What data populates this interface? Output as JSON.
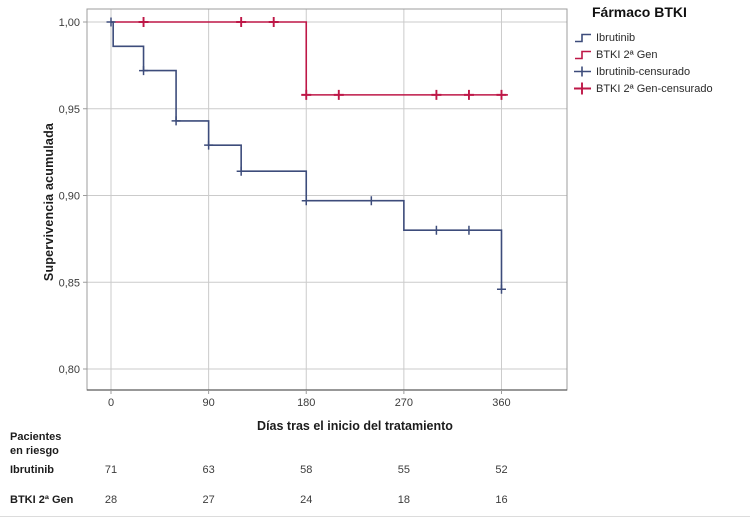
{
  "colors": {
    "blue": "#3d4c7b",
    "red": "#be1747",
    "grid": "#cbcbcb",
    "frame": "#9c9c9c",
    "axis_line": "#5a5a5a",
    "text_dark": "#1c1c1c",
    "text_tick": "#3c3c3c"
  },
  "legend": {
    "title": "Fármaco BTKI",
    "items": [
      {
        "label": "Ibrutinib",
        "symbol": "step-line",
        "color": "blue"
      },
      {
        "label": "BTKI 2ª Gen",
        "symbol": "step-line",
        "color": "red"
      },
      {
        "label": "Ibrutinib-censurado",
        "symbol": "plus",
        "color": "blue"
      },
      {
        "label": "BTKI 2ª Gen-censurado",
        "symbol": "plus",
        "color": "red"
      }
    ]
  },
  "chart_data": {
    "type": "line",
    "subtype": "kaplan-meier-step",
    "title": "",
    "xlabel": "Días tras el inicio del tratamiento",
    "ylabel": "Supervivencia acumulada",
    "xlim": [
      -22,
      420
    ],
    "ylim": [
      0.788,
      1.008
    ],
    "grid": true,
    "legend_position": "right-outside",
    "x_ticks": [
      {
        "label": "0",
        "value": 0
      },
      {
        "label": "90",
        "value": 90
      },
      {
        "label": "180",
        "value": 180
      },
      {
        "label": "270",
        "value": 270
      },
      {
        "label": "360",
        "value": 360
      }
    ],
    "y_ticks": [
      {
        "label": "1,00",
        "value": 1.0
      },
      {
        "label": "0,95",
        "value": 0.95
      },
      {
        "label": "0,90",
        "value": 0.9
      },
      {
        "label": "0,85",
        "value": 0.85
      },
      {
        "label": "0,80",
        "value": 0.8
      }
    ],
    "series": [
      {
        "name": "Ibrutinib",
        "color_key": "blue",
        "steps": [
          [
            0,
            1.0
          ],
          [
            2,
            0.986
          ],
          [
            30,
            0.972
          ],
          [
            60,
            0.943
          ],
          [
            90,
            0.929
          ],
          [
            120,
            0.914
          ],
          [
            180,
            0.897
          ],
          [
            270,
            0.88
          ],
          [
            360,
            0.846
          ]
        ],
        "end_day": 360,
        "censored": [
          [
            0,
            1.0
          ],
          [
            30,
            0.972
          ],
          [
            60,
            0.943
          ],
          [
            90,
            0.929
          ],
          [
            120,
            0.914
          ],
          [
            180,
            0.897
          ],
          [
            240,
            0.897
          ],
          [
            300,
            0.88
          ],
          [
            330,
            0.88
          ],
          [
            360,
            0.846
          ]
        ]
      },
      {
        "name": "BTKI 2ª Gen",
        "color_key": "red",
        "steps": [
          [
            0,
            1.0
          ],
          [
            180,
            0.958
          ]
        ],
        "end_day": 366,
        "censored": [
          [
            30,
            1.0
          ],
          [
            120,
            1.0
          ],
          [
            150,
            1.0
          ],
          [
            180,
            0.958
          ],
          [
            210,
            0.958
          ],
          [
            300,
            0.958
          ],
          [
            330,
            0.958
          ],
          [
            360,
            0.958
          ]
        ]
      }
    ]
  },
  "risk_table": {
    "header": "Pacientes\nen riesgo",
    "days": [
      0,
      90,
      180,
      270,
      360
    ],
    "rows": [
      {
        "label": "Ibrutinib",
        "values": [
          "71",
          "63",
          "58",
          "55",
          "52"
        ]
      },
      {
        "label": "BTKI 2ª Gen",
        "values": [
          "28",
          "27",
          "24",
          "18",
          "16"
        ]
      }
    ]
  }
}
